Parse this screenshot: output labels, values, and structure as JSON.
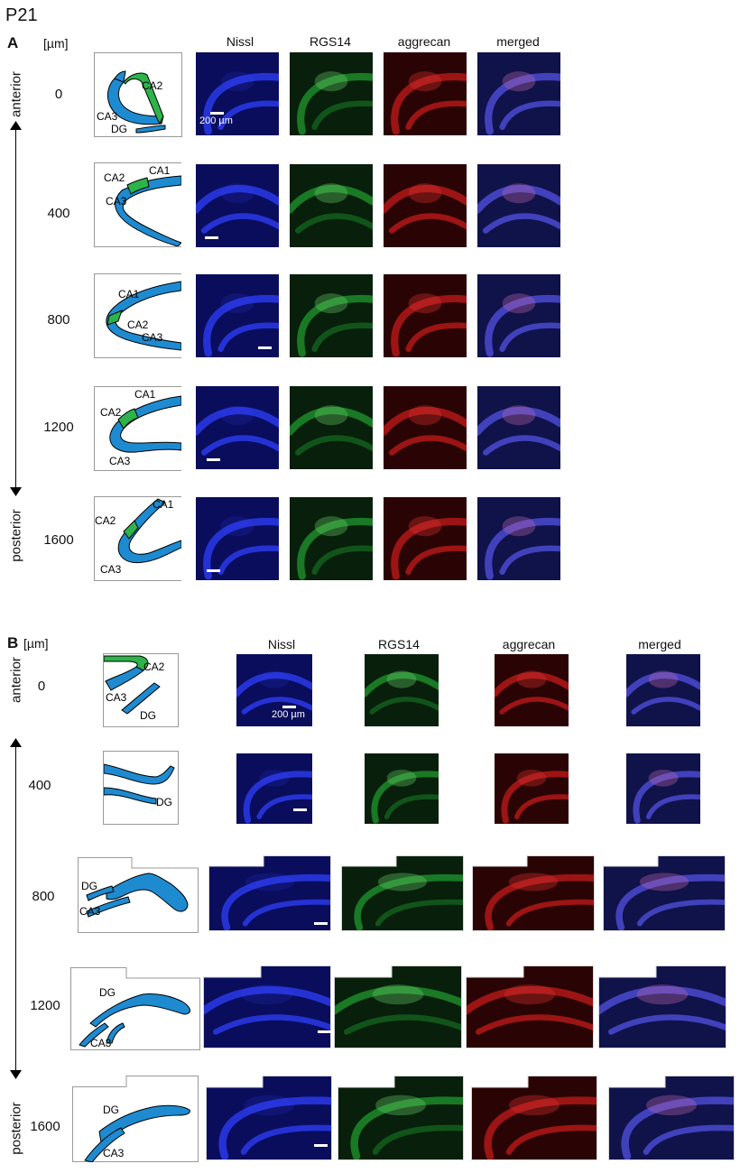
{
  "figure": {
    "age_label": "P21",
    "unit_label": "[µm]",
    "scale_text": "200 µm",
    "colors": {
      "region_blue": "#1e8bd1",
      "region_green": "#2db34a",
      "nissl": "#1a2bd8",
      "rgs": "#1f9a2e",
      "aggrecan": "#c21818"
    }
  },
  "panel_a": {
    "letter": "A",
    "columns": [
      "Nissl",
      "RGS14",
      "aggrecan",
      "merged"
    ],
    "axis_top": "anterior",
    "axis_bottom": "posterior",
    "rows": [
      {
        "depth": "0",
        "labels": [
          "CA2",
          "CA3",
          "DG"
        ]
      },
      {
        "depth": "400",
        "labels": [
          "CA2",
          "CA1",
          "CA3"
        ]
      },
      {
        "depth": "800",
        "labels": [
          "CA1",
          "CA2",
          "CA3"
        ]
      },
      {
        "depth": "1200",
        "labels": [
          "CA1",
          "CA2",
          "CA3"
        ]
      },
      {
        "depth": "1600",
        "labels": [
          "CA1",
          "CA2",
          "CA3"
        ]
      }
    ]
  },
  "panel_b": {
    "letter": "B",
    "columns": [
      "Nissl",
      "RGS14",
      "aggrecan",
      "merged"
    ],
    "axis_top": "anterior",
    "axis_bottom": "posterior",
    "rows": [
      {
        "depth": "0",
        "labels": [
          "CA2",
          "CA3",
          "DG"
        ]
      },
      {
        "depth": "400",
        "labels": [
          "DG"
        ]
      },
      {
        "depth": "800",
        "labels": [
          "DG",
          "CA3"
        ]
      },
      {
        "depth": "1200",
        "labels": [
          "DG",
          "CA3"
        ]
      },
      {
        "depth": "1600",
        "labels": [
          "DG",
          "CA3"
        ]
      }
    ]
  }
}
